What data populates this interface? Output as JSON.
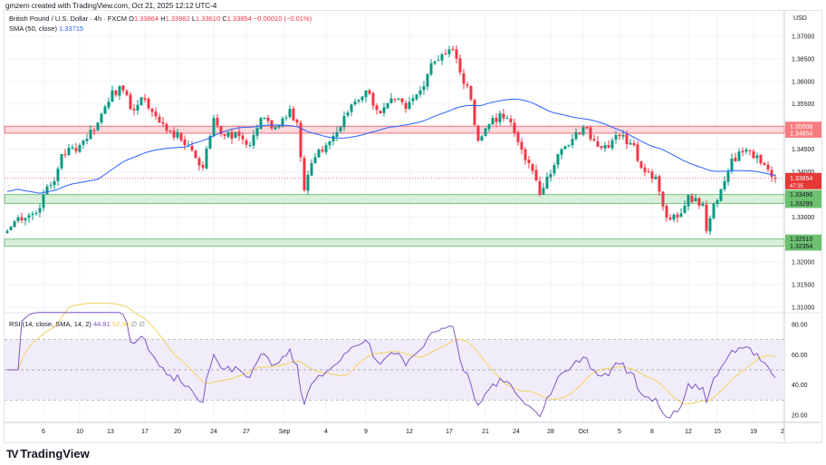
{
  "credit": "gmzern created with TradingView.com, Oct 21, 2025 12:12 UTC-4",
  "legend": {
    "symbol": "British Pound / U.S. Dollar · 4h · FXCM",
    "open_label": "O",
    "open": "1.33864",
    "high_label": "H",
    "high": "1.33982",
    "low_label": "L",
    "low": "1.33610",
    "close_label": "C",
    "close": "1.33854",
    "change": "−0.00010 (−0.01%)",
    "sma_label": "SMA (50, close)",
    "sma_value": "1.33715"
  },
  "rsi_legend": {
    "label": "RSI (14, close, SMA, 14, 2)",
    "rsi_value": "44.81",
    "ma_value": "52.30",
    "extra1": "∅",
    "extra2": "∅"
  },
  "currency": "USD",
  "logo": {
    "mark": "17",
    "text": "TradingView"
  },
  "colors": {
    "up": "#089981",
    "down": "#f23645",
    "sma": "#2962ff",
    "rsi": "#7e57c2",
    "rsi_ma": "#f3d877",
    "resistance": "#f23645",
    "support": "#4caf50"
  },
  "chart_data": {
    "type": "candlestick",
    "title": "British Pound / U.S. Dollar · 4h · FXCM",
    "price_range": [
      1.306,
      1.3735
    ],
    "price_ticks": [
      "1.37000",
      "1.36500",
      "1.36000",
      "1.35500",
      "1.34500",
      "1.34000",
      "1.33000",
      "1.32000",
      "1.31500",
      "1.31000"
    ],
    "close_keypoints": [
      [
        0,
        1.3269
      ],
      [
        3,
        1.3299
      ],
      [
        8,
        1.3309
      ],
      [
        10,
        1.3349
      ],
      [
        13,
        1.3379
      ],
      [
        15,
        1.3439
      ],
      [
        20,
        1.3459
      ],
      [
        25,
        1.3509
      ],
      [
        29,
        1.358
      ],
      [
        32,
        1.358
      ],
      [
        34,
        1.3539
      ],
      [
        38,
        1.356
      ],
      [
        42,
        1.3509
      ],
      [
        45,
        1.3489
      ],
      [
        50,
        1.3459
      ],
      [
        54,
        1.3409
      ],
      [
        57,
        1.3519
      ],
      [
        60,
        1.3479
      ],
      [
        64,
        1.3479
      ],
      [
        67,
        1.3459
      ],
      [
        70,
        1.3519
      ],
      [
        74,
        1.3499
      ],
      [
        78,
        1.3539
      ],
      [
        80,
        1.3509
      ],
      [
        82,
        1.3359
      ],
      [
        84,
        1.3419
      ],
      [
        88,
        1.3459
      ],
      [
        92,
        1.3499
      ],
      [
        95,
        1.3549
      ],
      [
        99,
        1.358
      ],
      [
        103,
        1.3529
      ],
      [
        107,
        1.356
      ],
      [
        110,
        1.3539
      ],
      [
        114,
        1.358
      ],
      [
        117,
        1.364
      ],
      [
        120,
        1.366
      ],
      [
        123,
        1.367
      ],
      [
        125,
        1.362
      ],
      [
        128,
        1.356
      ],
      [
        130,
        1.3469
      ],
      [
        134,
        1.3519
      ],
      [
        138,
        1.3519
      ],
      [
        142,
        1.3449
      ],
      [
        144,
        1.3419
      ],
      [
        147,
        1.3349
      ],
      [
        149,
        1.3389
      ],
      [
        152,
        1.3439
      ],
      [
        155,
        1.3459
      ],
      [
        159,
        1.3499
      ],
      [
        162,
        1.3469
      ],
      [
        165,
        1.3459
      ],
      [
        169,
        1.3479
      ],
      [
        173,
        1.3459
      ],
      [
        175,
        1.3409
      ],
      [
        179,
        1.3389
      ],
      [
        182,
        1.3299
      ],
      [
        185,
        1.3299
      ],
      [
        188,
        1.3349
      ],
      [
        192,
        1.3329
      ],
      [
        193,
        1.3269
      ],
      [
        195,
        1.3329
      ],
      [
        198,
        1.3379
      ],
      [
        200,
        1.3429
      ],
      [
        204,
        1.3449
      ],
      [
        208,
        1.3419
      ],
      [
        212,
        1.33854
      ]
    ],
    "zones": [
      {
        "name": "resistance",
        "top": 1.35008,
        "bottom": 1.34854,
        "top_label": "1.35008",
        "bottom_label": "1.34854",
        "color": "#f23645"
      },
      {
        "name": "support-1",
        "top": 1.33496,
        "bottom": 1.33299,
        "top_label": "1.33496",
        "bottom_label": "1.33299",
        "color": "#4caf50"
      },
      {
        "name": "support-2",
        "top": 1.3251,
        "bottom": 1.32354,
        "top_label": "1.32510",
        "bottom_label": "1.32354",
        "color": "#4caf50"
      }
    ],
    "last_price": {
      "value": 1.33854,
      "label": "1.33854",
      "countdown": "47:35"
    },
    "sma_period": 50,
    "rsi": {
      "period": 14,
      "range": [
        10,
        90
      ],
      "ticks": [
        "80.00",
        "60.00",
        "40.00",
        "20.00"
      ],
      "band": [
        30,
        70
      ],
      "mid": 50
    },
    "x_ticks": [
      [
        10,
        "6"
      ],
      [
        20,
        "10"
      ],
      [
        28.5,
        "13"
      ],
      [
        38,
        "17"
      ],
      [
        47,
        "20"
      ],
      [
        57,
        "24"
      ],
      [
        66,
        "27"
      ],
      [
        76.5,
        "Sep"
      ],
      [
        88,
        "4"
      ],
      [
        99,
        "9"
      ],
      [
        111,
        "12"
      ],
      [
        122,
        "17"
      ],
      [
        132,
        "21"
      ],
      [
        140.5,
        "24"
      ],
      [
        150,
        "28"
      ],
      [
        159,
        "Oct"
      ],
      [
        169,
        "5"
      ],
      [
        178,
        "8"
      ],
      [
        188,
        "12"
      ],
      [
        196,
        "15"
      ],
      [
        206,
        "19"
      ],
      [
        214,
        "2"
      ]
    ]
  }
}
